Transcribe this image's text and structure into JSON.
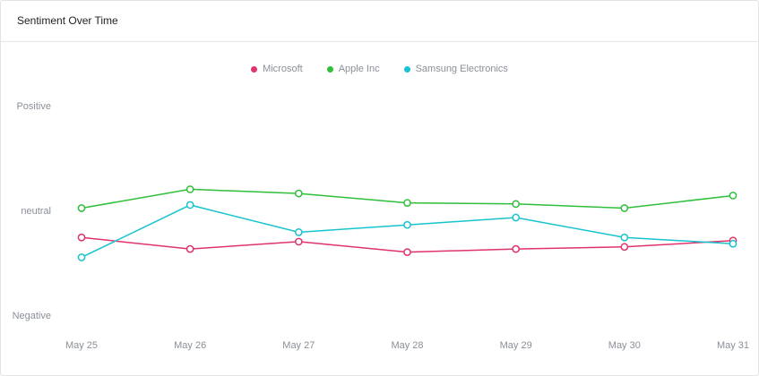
{
  "card": {
    "title": "Sentiment Over Time"
  },
  "chart_data": {
    "type": "line",
    "title": "Sentiment Over Time",
    "x": [
      "May 25",
      "May 26",
      "May 27",
      "May 28",
      "May 29",
      "May 30",
      "May 31"
    ],
    "y_categories": [
      "Positive",
      "neutral",
      "Negative"
    ],
    "ylim": [
      -1,
      1
    ],
    "legend_position": "top-center",
    "grid": false,
    "series": [
      {
        "name": "Microsoft",
        "color": "#e0336b",
        "values": [
          -0.25,
          -0.36,
          -0.29,
          -0.39,
          -0.36,
          -0.34,
          -0.28
        ]
      },
      {
        "name": "Apple Inc",
        "color": "#2fbf3a",
        "values": [
          0.03,
          0.21,
          0.17,
          0.08,
          0.07,
          0.03,
          0.15
        ]
      },
      {
        "name": "Samsung Electronics",
        "color": "#17c3cf",
        "values": [
          -0.44,
          0.06,
          -0.2,
          -0.13,
          -0.06,
          -0.25,
          -0.31
        ]
      }
    ]
  }
}
